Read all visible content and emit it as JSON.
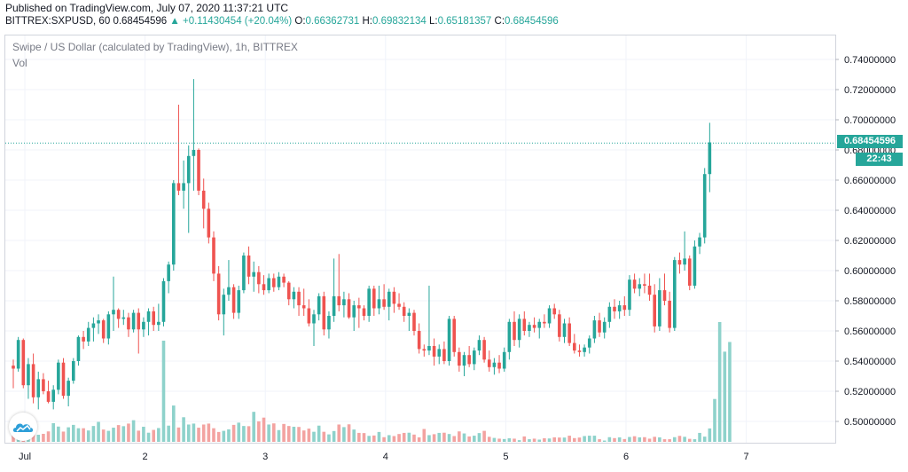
{
  "header": {
    "published": "Published on TradingView.com, July 07, 2020 11:37:21 UTC",
    "symbol": "BITTREX:SXPUSD, 60",
    "last": "0.68454596",
    "change": "▲ +0.11430454 (+20.04%)",
    "o_label": "O:",
    "o_value": "0.66362731",
    "h_label": "H:",
    "h_value": "0.69832134",
    "l_label": "L:",
    "l_value": "0.65181357",
    "c_label": "C:",
    "c_value": "0.68454596"
  },
  "legend": {
    "title": "Swipe / US Dollar (calculated by TradingView), 1h, BITTREX",
    "vol": "Vol"
  },
  "tags": {
    "price": "0.68454596",
    "countdown": "22:43"
  },
  "colors": {
    "up": "#26a69a",
    "down": "#ef5350",
    "vol_up": "#8ed2cb",
    "vol_down": "#f3a3a1",
    "grid": "#f0f3fa"
  },
  "chart_data": {
    "type": "candlestick",
    "y_axis": {
      "ticks": [
        0.5,
        0.52,
        0.54,
        0.56,
        0.58,
        0.6,
        0.62,
        0.64,
        0.66,
        0.68,
        0.7,
        0.72,
        0.74
      ],
      "tick_labels": [
        "0.50000000",
        "0.52000000",
        "0.54000000",
        "0.56000000",
        "0.58000000",
        "0.60000000",
        "0.62000000",
        "0.64000000",
        "0.66000000",
        "0.68000000",
        "0.70000000",
        "0.72000000",
        "0.74000000"
      ],
      "range": [
        0.485,
        0.745
      ]
    },
    "x_axis": {
      "labels": [
        "Jul",
        "2",
        "3",
        "4",
        "5",
        "6",
        "7"
      ],
      "label_bar_index": [
        0,
        24,
        48,
        72,
        96,
        120,
        144
      ]
    },
    "last_price": 0.68454596,
    "candles": [
      [
        0.537,
        0.541,
        0.522,
        0.535
      ],
      [
        0.535,
        0.556,
        0.533,
        0.554
      ],
      [
        0.554,
        0.555,
        0.522,
        0.524
      ],
      [
        0.524,
        0.542,
        0.515,
        0.538
      ],
      [
        0.538,
        0.545,
        0.512,
        0.516
      ],
      [
        0.516,
        0.533,
        0.508,
        0.528
      ],
      [
        0.528,
        0.532,
        0.518,
        0.52
      ],
      [
        0.52,
        0.527,
        0.512,
        0.513
      ],
      [
        0.513,
        0.524,
        0.508,
        0.521
      ],
      [
        0.521,
        0.541,
        0.518,
        0.539
      ],
      [
        0.539,
        0.542,
        0.515,
        0.517
      ],
      [
        0.517,
        0.529,
        0.51,
        0.527
      ],
      [
        0.527,
        0.542,
        0.525,
        0.54
      ],
      [
        0.54,
        0.557,
        0.537,
        0.556
      ],
      [
        0.556,
        0.56,
        0.548,
        0.553
      ],
      [
        0.553,
        0.566,
        0.55,
        0.562
      ],
      [
        0.562,
        0.569,
        0.553,
        0.565
      ],
      [
        0.565,
        0.571,
        0.558,
        0.567
      ],
      [
        0.567,
        0.568,
        0.552,
        0.555
      ],
      [
        0.555,
        0.573,
        0.551,
        0.571
      ],
      [
        0.571,
        0.596,
        0.56,
        0.574
      ],
      [
        0.574,
        0.575,
        0.562,
        0.568
      ],
      [
        0.568,
        0.574,
        0.564,
        0.569
      ],
      [
        0.569,
        0.572,
        0.556,
        0.561
      ],
      [
        0.561,
        0.574,
        0.559,
        0.572
      ],
      [
        0.572,
        0.575,
        0.545,
        0.561
      ],
      [
        0.561,
        0.569,
        0.556,
        0.566
      ],
      [
        0.566,
        0.575,
        0.557,
        0.573
      ],
      [
        0.573,
        0.576,
        0.56,
        0.564
      ],
      [
        0.564,
        0.578,
        0.56,
        0.566
      ],
      [
        0.566,
        0.595,
        0.563,
        0.593
      ],
      [
        0.593,
        0.606,
        0.585,
        0.604
      ],
      [
        0.604,
        0.66,
        0.6,
        0.658
      ],
      [
        0.658,
        0.71,
        0.65,
        0.653
      ],
      [
        0.653,
        0.673,
        0.641,
        0.658
      ],
      [
        0.658,
        0.683,
        0.625,
        0.676
      ],
      [
        0.676,
        0.727,
        0.653,
        0.68
      ],
      [
        0.68,
        0.681,
        0.65,
        0.653
      ],
      [
        0.653,
        0.661,
        0.628,
        0.641
      ],
      [
        0.641,
        0.645,
        0.618,
        0.622
      ],
      [
        0.622,
        0.626,
        0.593,
        0.598
      ],
      [
        0.598,
        0.603,
        0.567,
        0.571
      ],
      [
        0.571,
        0.588,
        0.557,
        0.584
      ],
      [
        0.584,
        0.607,
        0.58,
        0.589
      ],
      [
        0.589,
        0.591,
        0.568,
        0.572
      ],
      [
        0.572,
        0.59,
        0.568,
        0.587
      ],
      [
        0.587,
        0.612,
        0.585,
        0.61
      ],
      [
        0.61,
        0.616,
        0.591,
        0.596
      ],
      [
        0.596,
        0.606,
        0.586,
        0.599
      ],
      [
        0.599,
        0.603,
        0.585,
        0.591
      ],
      [
        0.591,
        0.597,
        0.584,
        0.587
      ],
      [
        0.587,
        0.598,
        0.585,
        0.595
      ],
      [
        0.595,
        0.598,
        0.586,
        0.589
      ],
      [
        0.589,
        0.599,
        0.587,
        0.596
      ],
      [
        0.596,
        0.598,
        0.589,
        0.592
      ],
      [
        0.592,
        0.593,
        0.577,
        0.581
      ],
      [
        0.581,
        0.589,
        0.575,
        0.586
      ],
      [
        0.586,
        0.589,
        0.57,
        0.577
      ],
      [
        0.577,
        0.588,
        0.57,
        0.575
      ],
      [
        0.575,
        0.581,
        0.563,
        0.565
      ],
      [
        0.565,
        0.574,
        0.55,
        0.571
      ],
      [
        0.571,
        0.585,
        0.567,
        0.583
      ],
      [
        0.583,
        0.586,
        0.557,
        0.561
      ],
      [
        0.561,
        0.573,
        0.555,
        0.57
      ],
      [
        0.57,
        0.608,
        0.566,
        0.583
      ],
      [
        0.583,
        0.611,
        0.573,
        0.577
      ],
      [
        0.577,
        0.586,
        0.569,
        0.581
      ],
      [
        0.581,
        0.585,
        0.568,
        0.569
      ],
      [
        0.569,
        0.58,
        0.56,
        0.577
      ],
      [
        0.577,
        0.582,
        0.562,
        0.575
      ],
      [
        0.575,
        0.577,
        0.567,
        0.57
      ],
      [
        0.57,
        0.59,
        0.566,
        0.588
      ],
      [
        0.588,
        0.59,
        0.57,
        0.575
      ],
      [
        0.575,
        0.59,
        0.571,
        0.581
      ],
      [
        0.581,
        0.591,
        0.574,
        0.576
      ],
      [
        0.576,
        0.588,
        0.567,
        0.586
      ],
      [
        0.586,
        0.589,
        0.572,
        0.578
      ],
      [
        0.578,
        0.585,
        0.574,
        0.576
      ],
      [
        0.576,
        0.579,
        0.566,
        0.57
      ],
      [
        0.57,
        0.575,
        0.56,
        0.572
      ],
      [
        0.572,
        0.574,
        0.557,
        0.56
      ],
      [
        0.56,
        0.565,
        0.545,
        0.548
      ],
      [
        0.548,
        0.551,
        0.543,
        0.547
      ],
      [
        0.547,
        0.59,
        0.544,
        0.55
      ],
      [
        0.55,
        0.555,
        0.537,
        0.543
      ],
      [
        0.543,
        0.551,
        0.538,
        0.548
      ],
      [
        0.548,
        0.553,
        0.538,
        0.54
      ],
      [
        0.54,
        0.57,
        0.537,
        0.568
      ],
      [
        0.568,
        0.57,
        0.543,
        0.546
      ],
      [
        0.546,
        0.549,
        0.533,
        0.537
      ],
      [
        0.537,
        0.546,
        0.53,
        0.544
      ],
      [
        0.544,
        0.55,
        0.536,
        0.538
      ],
      [
        0.538,
        0.549,
        0.534,
        0.547
      ],
      [
        0.547,
        0.557,
        0.544,
        0.554
      ],
      [
        0.554,
        0.556,
        0.539,
        0.541
      ],
      [
        0.541,
        0.547,
        0.533,
        0.536
      ],
      [
        0.536,
        0.542,
        0.531,
        0.539
      ],
      [
        0.539,
        0.544,
        0.532,
        0.535
      ],
      [
        0.535,
        0.549,
        0.533,
        0.546
      ],
      [
        0.546,
        0.568,
        0.541,
        0.566
      ],
      [
        0.566,
        0.573,
        0.55,
        0.554
      ],
      [
        0.554,
        0.571,
        0.549,
        0.568
      ],
      [
        0.568,
        0.573,
        0.557,
        0.56
      ],
      [
        0.56,
        0.566,
        0.556,
        0.564
      ],
      [
        0.564,
        0.569,
        0.559,
        0.562
      ],
      [
        0.562,
        0.568,
        0.555,
        0.566
      ],
      [
        0.566,
        0.571,
        0.562,
        0.565
      ],
      [
        0.565,
        0.577,
        0.562,
        0.575
      ],
      [
        0.575,
        0.578,
        0.568,
        0.571
      ],
      [
        0.571,
        0.574,
        0.553,
        0.556
      ],
      [
        0.556,
        0.568,
        0.552,
        0.565
      ],
      [
        0.565,
        0.569,
        0.55,
        0.552
      ],
      [
        0.552,
        0.558,
        0.545,
        0.547
      ],
      [
        0.547,
        0.551,
        0.543,
        0.546
      ],
      [
        0.546,
        0.551,
        0.543,
        0.549
      ],
      [
        0.549,
        0.557,
        0.545,
        0.555
      ],
      [
        0.555,
        0.57,
        0.552,
        0.567
      ],
      [
        0.567,
        0.572,
        0.556,
        0.559
      ],
      [
        0.559,
        0.569,
        0.555,
        0.566
      ],
      [
        0.566,
        0.579,
        0.562,
        0.576
      ],
      [
        0.576,
        0.581,
        0.568,
        0.573
      ],
      [
        0.573,
        0.58,
        0.568,
        0.577
      ],
      [
        0.577,
        0.583,
        0.57,
        0.574
      ],
      [
        0.574,
        0.597,
        0.57,
        0.594
      ],
      [
        0.594,
        0.598,
        0.585,
        0.588
      ],
      [
        0.588,
        0.595,
        0.583,
        0.591
      ],
      [
        0.591,
        0.598,
        0.585,
        0.59
      ],
      [
        0.59,
        0.598,
        0.58,
        0.584
      ],
      [
        0.584,
        0.591,
        0.559,
        0.563
      ],
      [
        0.563,
        0.595,
        0.56,
        0.587
      ],
      [
        0.587,
        0.598,
        0.577,
        0.58
      ],
      [
        0.58,
        0.586,
        0.559,
        0.562
      ],
      [
        0.562,
        0.609,
        0.56,
        0.607
      ],
      [
        0.607,
        0.612,
        0.598,
        0.604
      ],
      [
        0.604,
        0.626,
        0.6,
        0.608
      ],
      [
        0.608,
        0.61,
        0.587,
        0.59
      ],
      [
        0.59,
        0.62,
        0.588,
        0.616
      ],
      [
        0.616,
        0.625,
        0.611,
        0.622
      ],
      [
        0.622,
        0.668,
        0.618,
        0.664
      ],
      [
        0.664,
        0.698,
        0.652,
        0.685
      ]
    ],
    "volume": [
      0.49,
      0.47,
      0.46,
      0.6,
      0.48,
      0.38,
      0.43,
      0.56,
      1.0,
      0.82,
      0.55,
      0.78,
      0.91,
      0.73,
      0.73,
      0.61,
      0.85,
      1.07,
      0.66,
      0.59,
      0.76,
      0.9,
      0.84,
      0.98,
      1.16,
      0.6,
      0.81,
      0.49,
      0.64,
      0.74,
      5.43,
      0.87,
      1.95,
      0.77,
      1.32,
      0.93,
      0.98,
      0.76,
      0.93,
      0.98,
      0.73,
      0.53,
      0.59,
      0.67,
      0.91,
      1.03,
      0.85,
      0.84,
      1.61,
      1.1,
      1.3,
      0.93,
      0.99,
      0.63,
      0.96,
      0.85,
      0.81,
      0.8,
      0.61,
      0.71,
      0.54,
      0.87,
      0.54,
      0.4,
      0.58,
      0.93,
      0.79,
      0.94,
      0.66,
      0.48,
      0.47,
      0.32,
      0.34,
      0.53,
      0.25,
      0.36,
      0.31,
      0.42,
      0.48,
      0.49,
      0.39,
      0.24,
      0.69,
      0.36,
      0.41,
      0.48,
      0.49,
      0.42,
      0.31,
      0.56,
      0.45,
      0.29,
      0.33,
      0.47,
      0.59,
      0.27,
      0.21,
      0.17,
      0.15,
      0.19,
      0.17,
      0.09,
      0.29,
      0.14,
      0.17,
      0.12,
      0.19,
      0.18,
      0.24,
      0.23,
      0.23,
      0.33,
      0.2,
      0.23,
      0.31,
      0.33,
      0.33,
      0.14,
      0.07,
      0.25,
      0.2,
      0.24,
      0.15,
      0.26,
      0.3,
      0.24,
      0.25,
      0.17,
      0.27,
      0.24,
      0.14,
      0.14,
      0.25,
      0.32,
      0.27,
      0.16,
      0.14,
      0.48,
      0.28,
      0.72,
      2.3,
      6.43,
      4.84,
      5.36
    ]
  }
}
